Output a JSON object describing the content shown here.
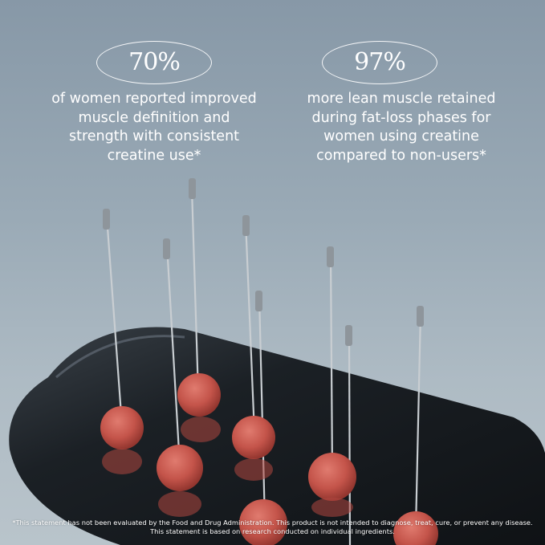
{
  "stats": [
    {
      "value": "70%",
      "lines": [
        "of women reported improved",
        "muscle definition and",
        "strength with consistent",
        "creatine use*"
      ]
    },
    {
      "value": "97%",
      "lines": [
        "more lean muscle retained",
        "during fat-loss phases for",
        "women using creatine",
        "compared to non-users*"
      ]
    }
  ],
  "disclaimer": {
    "line1": "*This statement has not been evaluated by the Food and Drug Administration. This product is not intended to diagnose, treat, cure, or prevent any disease.",
    "line2": "This statement is based on research conducted on individual ingredients."
  },
  "colors": {
    "background": "#9aaab6",
    "tray": "#1c2126",
    "gummy": "#c8564c",
    "text": "#ffffff"
  }
}
